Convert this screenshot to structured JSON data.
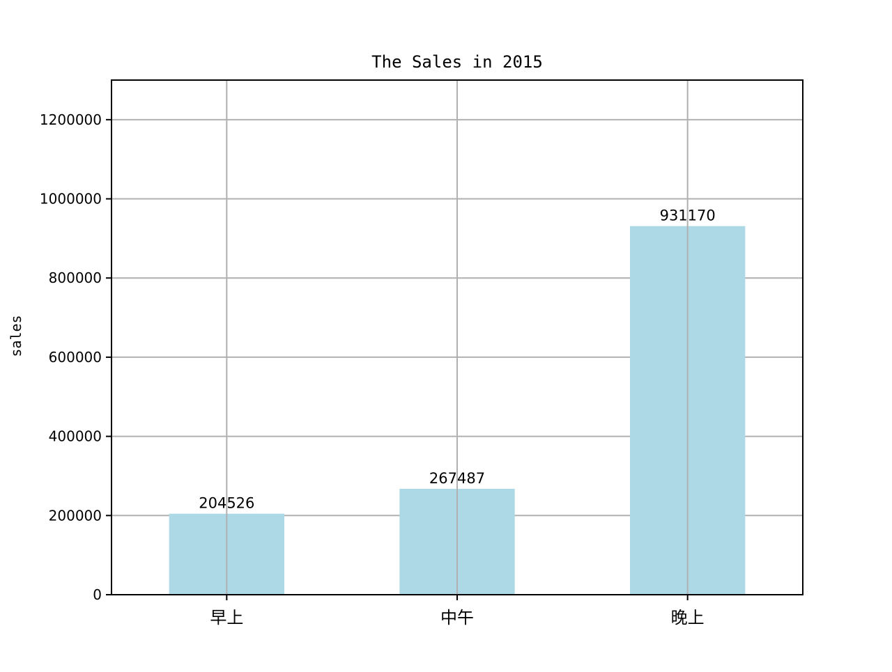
{
  "chart_data": {
    "type": "bar",
    "title": "The Sales in 2015",
    "xlabel": "",
    "ylabel": "sales",
    "categories": [
      "早上",
      "中午",
      "晚上"
    ],
    "values": [
      204526,
      267487,
      931170
    ],
    "data_labels": [
      "204526",
      "267487",
      "931170"
    ],
    "ylim": [
      0,
      1300000
    ],
    "yticks": [
      0,
      200000,
      400000,
      600000,
      800000,
      1000000,
      1200000
    ],
    "ytick_labels": [
      "0",
      "200000",
      "400000",
      "600000",
      "800000",
      "1000000",
      "1200000"
    ],
    "grid": true,
    "legend": "none",
    "bar_color": "#add8e6",
    "grid_color": "#b0b0b0"
  }
}
